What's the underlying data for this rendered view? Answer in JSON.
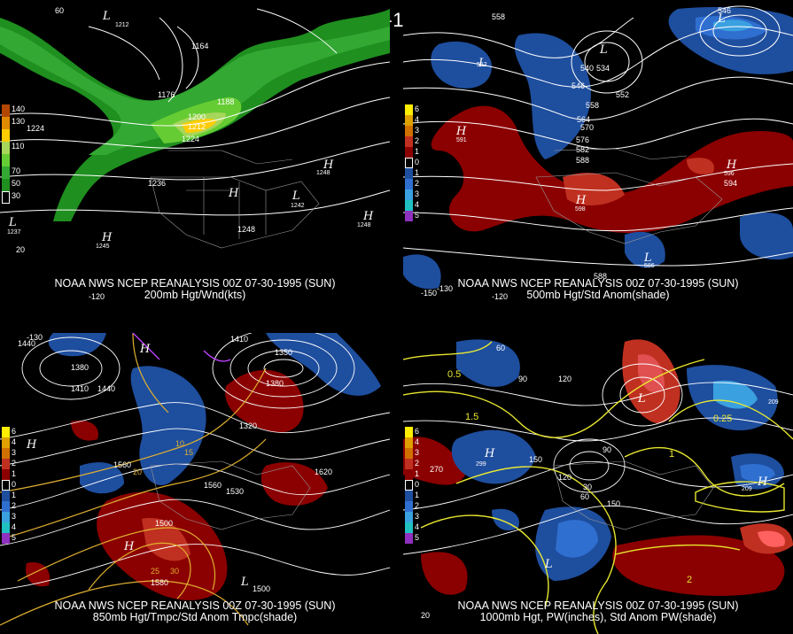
{
  "title": "00Z 07-30-1995 (SUN)",
  "panels": [
    {
      "caption_line1": "NOAA NWS NCEP REANALYSIS 00Z 07-30-1995 (SUN)",
      "caption_line2": "200mb Hgt/Wnd(kts)",
      "legend": [
        {
          "label": "140",
          "color": "#b34700"
        },
        {
          "label": "130",
          "color": "#e08a00"
        },
        {
          "label": "",
          "color": "#ffcc00"
        },
        {
          "label": "110",
          "color": "#a6d65a"
        },
        {
          "label": "",
          "color": "#66cc33"
        },
        {
          "label": "70",
          "color": "#33a833"
        },
        {
          "label": "50",
          "color": "#1f8f1f"
        },
        {
          "label": "30",
          "color": "#000000"
        }
      ],
      "contour_labels": [
        "1164",
        "1176",
        "1188",
        "1200",
        "1212",
        "1224",
        "1224",
        "1236",
        "1248",
        "1248",
        "1248",
        "1242",
        "1237",
        "1245",
        "1212"
      ],
      "axis_labels": [
        "60",
        "20",
        "-120"
      ]
    },
    {
      "caption_line1": "NOAA NWS NCEP REANALYSIS 00Z 07-30-1995 (SUN)",
      "caption_line2": "500mb Hgt/Std Anom(shade)",
      "legend": [
        {
          "label": "6",
          "color": "#ffee00"
        },
        {
          "label": "4",
          "color": "#e0a000"
        },
        {
          "label": "3",
          "color": "#d07000"
        },
        {
          "label": "2",
          "color": "#c03020"
        },
        {
          "label": "1",
          "color": "#8b0000"
        },
        {
          "label": "0",
          "color": "#000000"
        },
        {
          "label": "1",
          "color": "#1e4e9e"
        },
        {
          "label": "2",
          "color": "#2f6fd0"
        },
        {
          "label": "3",
          "color": "#3aa0e0"
        },
        {
          "label": "4",
          "color": "#20c0c0"
        },
        {
          "label": "5",
          "color": "#9030c0"
        }
      ],
      "contour_labels": [
        "558",
        "546",
        "540",
        "534",
        "546",
        "552",
        "558",
        "564",
        "570",
        "576",
        "582",
        "588",
        "594",
        "588",
        "591",
        "596",
        "598",
        "586",
        "552"
      ],
      "axis_labels": [
        "-150",
        "-130",
        "-120"
      ]
    },
    {
      "caption_line1": "NOAA NWS NCEP REANALYSIS 00Z 07-30-1995 (SUN)",
      "caption_line2": "850mb Hgt/Tmpc/Std Anom Tmpc(shade)",
      "legend": [
        {
          "label": "6",
          "color": "#ffee00"
        },
        {
          "label": "4",
          "color": "#e0a000"
        },
        {
          "label": "3",
          "color": "#d07000"
        },
        {
          "label": "2",
          "color": "#c03020"
        },
        {
          "label": "1",
          "color": "#8b0000"
        },
        {
          "label": "0",
          "color": "#000000"
        },
        {
          "label": "1",
          "color": "#1e4e9e"
        },
        {
          "label": "2",
          "color": "#2f6fd0"
        },
        {
          "label": "3",
          "color": "#3aa0e0"
        },
        {
          "label": "4",
          "color": "#20c0c0"
        },
        {
          "label": "5",
          "color": "#9030c0"
        }
      ],
      "contour_labels": [
        "1440",
        "1380",
        "1410",
        "1440",
        "1410",
        "1350",
        "1320",
        "1380",
        "1620",
        "1560",
        "1530",
        "1500",
        "1560",
        "1580",
        "1500",
        "10",
        "15",
        "20",
        "25",
        "30"
      ],
      "axis_labels": [
        "-130"
      ]
    },
    {
      "caption_line1": "NOAA NWS NCEP REANALYSIS 00Z 07-30-1995 (SUN)",
      "caption_line2": "1000mb Hgt, PW(inches), Std Anom PW(shade)",
      "legend": [
        {
          "label": "6",
          "color": "#ffee00"
        },
        {
          "label": "4",
          "color": "#e0a000"
        },
        {
          "label": "3",
          "color": "#d07000"
        },
        {
          "label": "2",
          "color": "#c03020"
        },
        {
          "label": "1",
          "color": "#8b0000"
        },
        {
          "label": "0",
          "color": "#000000"
        },
        {
          "label": "1",
          "color": "#1e4e9e"
        },
        {
          "label": "2",
          "color": "#2f6fd0"
        },
        {
          "label": "3",
          "color": "#3aa0e0"
        },
        {
          "label": "4",
          "color": "#20c0c0"
        },
        {
          "label": "5",
          "color": "#9030c0"
        }
      ],
      "contour_labels": [
        "60",
        "90",
        "120",
        "150",
        "270",
        "120",
        "60",
        "30",
        "90",
        "0.5",
        "1",
        "1.5",
        "2",
        "0.25",
        "209",
        "209",
        "299",
        "150"
      ],
      "axis_labels": [
        "20"
      ]
    }
  ]
}
